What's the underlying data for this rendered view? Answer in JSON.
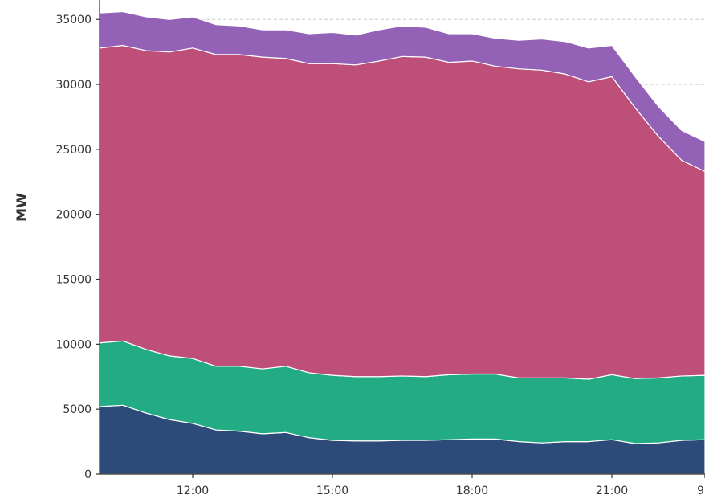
{
  "chart_data": {
    "type": "area",
    "stacked": true,
    "ylabel": "MW",
    "xlabel": "",
    "ylim": [
      0,
      36500
    ],
    "xlim": [
      10.0,
      23.0
    ],
    "yticks": [
      0,
      5000,
      10000,
      15000,
      20000,
      25000,
      30000,
      35000
    ],
    "xticks": [
      {
        "value": 12.0,
        "label": "12:00"
      },
      {
        "value": 15.0,
        "label": "15:00"
      },
      {
        "value": 18.0,
        "label": "18:00"
      },
      {
        "value": 21.0,
        "label": "21:00"
      },
      {
        "value": 23.0,
        "label": "9"
      }
    ],
    "grid": {
      "y": true,
      "x": false,
      "style": "dashed"
    },
    "x": [
      10.0,
      10.5,
      11.0,
      11.5,
      12.0,
      12.5,
      13.0,
      13.5,
      14.0,
      14.5,
      15.0,
      15.5,
      16.0,
      16.5,
      17.0,
      17.5,
      18.0,
      18.5,
      19.0,
      19.5,
      20.0,
      20.5,
      21.0,
      21.5,
      22.0,
      22.5,
      23.0
    ],
    "series": [
      {
        "color": "#2d4b78",
        "values": [
          5200,
          5300,
          4700,
          4200,
          3900,
          3400,
          3300,
          3100,
          3200,
          2800,
          2600,
          2550,
          2550,
          2600,
          2600,
          2650,
          2700,
          2700,
          2500,
          2400,
          2500,
          2500,
          2650,
          2350,
          2400,
          2600,
          2650
        ]
      },
      {
        "color": "#23ab84",
        "values": [
          4900,
          4950,
          4900,
          4900,
          5000,
          4900,
          5000,
          5000,
          5100,
          5000,
          5000,
          4950,
          4950,
          4950,
          4900,
          5000,
          5000,
          5000,
          4900,
          5000,
          4900,
          4800,
          5000,
          5000,
          5000,
          4950,
          4950
        ]
      },
      {
        "color": "#be4f79",
        "values": [
          22700,
          22750,
          23000,
          23400,
          23900,
          24000,
          24000,
          24000,
          23700,
          23800,
          24000,
          24000,
          24300,
          24600,
          24600,
          24050,
          24100,
          23700,
          23800,
          23700,
          23400,
          22900,
          22950,
          20850,
          18600,
          16600,
          15700
        ]
      },
      {
        "color": "#9361b5",
        "values": [
          2700,
          2600,
          2600,
          2500,
          2400,
          2300,
          2200,
          2100,
          2200,
          2300,
          2400,
          2300,
          2400,
          2350,
          2300,
          2200,
          2100,
          2150,
          2200,
          2400,
          2500,
          2600,
          2400,
          2400,
          2300,
          2300,
          2300
        ]
      }
    ]
  }
}
